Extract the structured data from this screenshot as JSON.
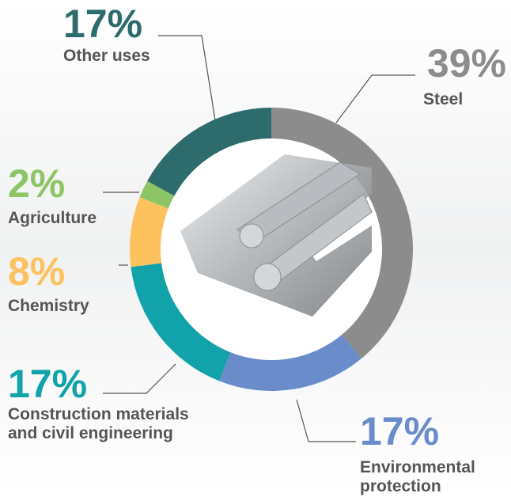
{
  "chart_data": {
    "type": "pie",
    "donut": true,
    "categories": [
      "Steel",
      "Environmental protection",
      "Construction materials and civil engineering",
      "Chemistry",
      "Agriculture",
      "Other uses"
    ],
    "values": [
      39,
      17,
      17,
      8,
      2,
      17
    ],
    "value_labels": [
      "39%",
      "17%",
      "17%",
      "8%",
      "2%",
      "17%"
    ],
    "colors": [
      "#8c8c8c",
      "#6a8cca",
      "#12a2aa",
      "#fdc15e",
      "#8dc566",
      "#2e6b6c"
    ]
  }
}
